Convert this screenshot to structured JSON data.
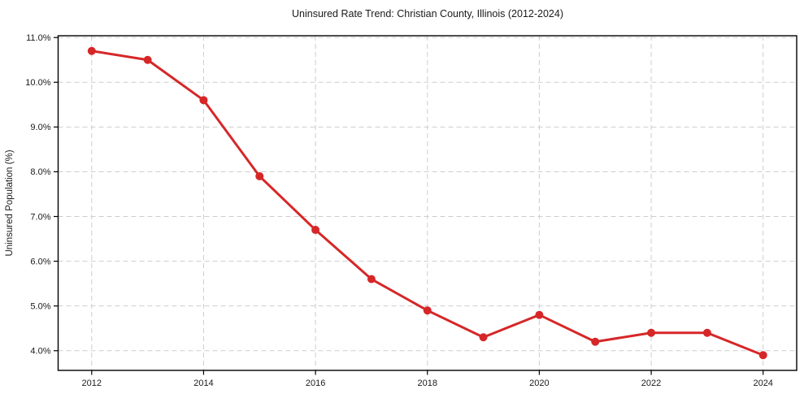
{
  "figure": {
    "title": "Uninsured Rate Trend: Christian County, Illinois (2012-2024)"
  },
  "chart_data": {
    "type": "line",
    "title": "Uninsured Rate Trend: Christian County, Illinois (2012-2024)",
    "xlabel": "",
    "ylabel": "Uninsured Population (%)",
    "x": [
      2012,
      2013,
      2014,
      2015,
      2016,
      2017,
      2018,
      2019,
      2020,
      2021,
      2022,
      2023,
      2024
    ],
    "values": [
      10.7,
      10.5,
      9.6,
      7.9,
      6.7,
      5.6,
      4.9,
      4.3,
      4.8,
      4.2,
      4.4,
      4.4,
      3.9
    ],
    "xlim": [
      2011.4,
      2024.6
    ],
    "ylim": [
      3.56,
      11.04
    ],
    "xticks": [
      2012,
      2014,
      2016,
      2018,
      2020,
      2022,
      2024
    ],
    "xtick_labels": [
      "2012",
      "2014",
      "2016",
      "2018",
      "2020",
      "2022",
      "2024"
    ],
    "yticks": [
      4.0,
      5.0,
      6.0,
      7.0,
      8.0,
      9.0,
      10.0,
      11.0
    ],
    "ytick_labels": [
      "4.0%",
      "5.0%",
      "6.0%",
      "7.0%",
      "8.0%",
      "9.0%",
      "10.0%",
      "11.0%"
    ],
    "grid": true,
    "grid_style": "dashed",
    "legend": false,
    "colors": {
      "line": "#d62728",
      "marker": "#d62728",
      "grid": "#cdcdcd",
      "spine": "#000000",
      "text": "#1a1a1a",
      "plot_background": "#ffffff"
    }
  }
}
